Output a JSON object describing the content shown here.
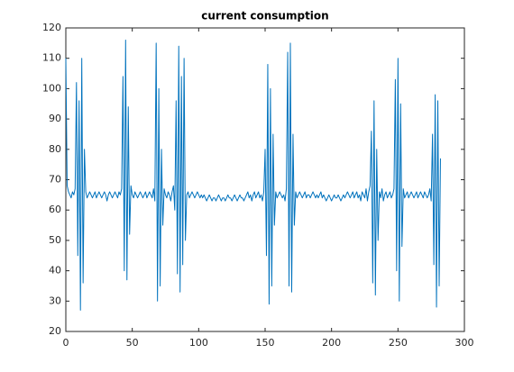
{
  "chart_data": {
    "type": "line",
    "title": "current consumption",
    "color": "#0072bd",
    "xlim": [
      0,
      300
    ],
    "xticks": [
      0,
      50,
      100,
      150,
      200,
      250,
      300
    ],
    "ylim": [
      20,
      120
    ],
    "yticks": [
      20,
      30,
      40,
      50,
      60,
      70,
      80,
      90,
      100,
      110,
      120
    ],
    "x": [
      0,
      1,
      2,
      3,
      4,
      5,
      6,
      7,
      8,
      9,
      10,
      11,
      12,
      13,
      14,
      15,
      16,
      17,
      18,
      19,
      20,
      21,
      22,
      23,
      24,
      25,
      26,
      27,
      28,
      29,
      30,
      31,
      32,
      33,
      34,
      35,
      36,
      37,
      38,
      39,
      40,
      41,
      42,
      43,
      44,
      45,
      46,
      47,
      48,
      49,
      50,
      51,
      52,
      53,
      54,
      55,
      56,
      57,
      58,
      59,
      60,
      61,
      62,
      63,
      64,
      65,
      66,
      67,
      68,
      69,
      70,
      71,
      72,
      73,
      74,
      75,
      76,
      77,
      78,
      79,
      80,
      81,
      82,
      83,
      84,
      85,
      86,
      87,
      88,
      89,
      90,
      91,
      92,
      93,
      94,
      95,
      96,
      97,
      98,
      99,
      100,
      101,
      102,
      103,
      104,
      105,
      106,
      107,
      108,
      109,
      110,
      111,
      112,
      113,
      114,
      115,
      116,
      117,
      118,
      119,
      120,
      121,
      122,
      123,
      124,
      125,
      126,
      127,
      128,
      129,
      130,
      131,
      132,
      133,
      134,
      135,
      136,
      137,
      138,
      139,
      140,
      141,
      142,
      143,
      144,
      145,
      146,
      147,
      148,
      149,
      150,
      151,
      152,
      153,
      154,
      155,
      156,
      157,
      158,
      159,
      160,
      161,
      162,
      163,
      164,
      165,
      166,
      167,
      168,
      169,
      170,
      171,
      172,
      173,
      174,
      175,
      176,
      177,
      178,
      179,
      180,
      181,
      182,
      183,
      184,
      185,
      186,
      187,
      188,
      189,
      190,
      191,
      192,
      193,
      194,
      195,
      196,
      197,
      198,
      199,
      200,
      201,
      202,
      203,
      204,
      205,
      206,
      207,
      208,
      209,
      210,
      211,
      212,
      213,
      214,
      215,
      216,
      217,
      218,
      219,
      220,
      221,
      222,
      223,
      224,
      225,
      226,
      227,
      228,
      229,
      230,
      231,
      232,
      233,
      234,
      235,
      236,
      237,
      238,
      239,
      240,
      241,
      242,
      243,
      244,
      245,
      246,
      247,
      248,
      249,
      250,
      251,
      252,
      253,
      254,
      255,
      256,
      257,
      258,
      259,
      260,
      261,
      262,
      263,
      264,
      265,
      266,
      267,
      268,
      269,
      270,
      271,
      272,
      273,
      274,
      275,
      276,
      277,
      278,
      279,
      280,
      281,
      282
    ],
    "values": [
      110,
      68,
      66,
      65,
      64,
      66,
      65,
      67,
      102,
      45,
      96,
      27,
      110,
      36,
      80,
      66,
      64,
      65,
      66,
      65,
      64,
      65,
      66,
      64,
      65,
      66,
      65,
      64,
      65,
      66,
      65,
      63,
      65,
      66,
      65,
      64,
      65,
      66,
      65,
      64,
      66,
      65,
      67,
      104,
      40,
      116,
      37,
      94,
      52,
      68,
      65,
      64,
      66,
      65,
      64,
      65,
      66,
      65,
      64,
      65,
      66,
      64,
      65,
      66,
      65,
      64,
      67,
      63,
      115,
      30,
      100,
      35,
      80,
      55,
      67,
      65,
      64,
      66,
      65,
      63,
      66,
      68,
      60,
      96,
      39,
      114,
      33,
      104,
      42,
      110,
      50,
      65,
      66,
      64,
      65,
      66,
      65,
      64,
      65,
      66,
      65,
      64,
      65,
      64,
      65,
      64,
      63,
      64,
      65,
      64,
      63,
      64,
      64,
      63,
      64,
      65,
      64,
      63,
      64,
      64,
      63,
      64,
      65,
      64,
      64,
      63,
      64,
      65,
      64,
      63,
      64,
      65,
      64,
      64,
      63,
      64,
      65,
      66,
      64,
      65,
      63,
      65,
      66,
      64,
      65,
      66,
      64,
      65,
      63,
      66,
      80,
      45,
      108,
      29,
      100,
      35,
      85,
      55,
      66,
      64,
      65,
      66,
      65,
      64,
      65,
      63,
      67,
      112,
      35,
      115,
      33,
      85,
      55,
      66,
      64,
      65,
      66,
      65,
      64,
      65,
      66,
      64,
      65,
      65,
      64,
      65,
      66,
      65,
      64,
      65,
      64,
      65,
      66,
      64,
      65,
      64,
      63,
      64,
      65,
      64,
      63,
      64,
      65,
      64,
      64,
      65,
      64,
      63,
      64,
      65,
      64,
      65,
      66,
      65,
      64,
      65,
      66,
      64,
      65,
      66,
      64,
      65,
      63,
      66,
      65,
      64,
      67,
      63,
      66,
      68,
      86,
      36,
      96,
      32,
      80,
      50,
      66,
      64,
      67,
      63,
      65,
      66,
      64,
      65,
      66,
      64,
      65,
      67,
      103,
      40,
      110,
      30,
      95,
      48,
      67,
      64,
      65,
      66,
      64,
      65,
      66,
      65,
      64,
      65,
      66,
      64,
      65,
      66,
      65,
      64,
      66,
      65,
      64,
      65,
      67,
      63,
      85,
      42,
      98,
      28,
      96,
      35,
      77
    ]
  }
}
